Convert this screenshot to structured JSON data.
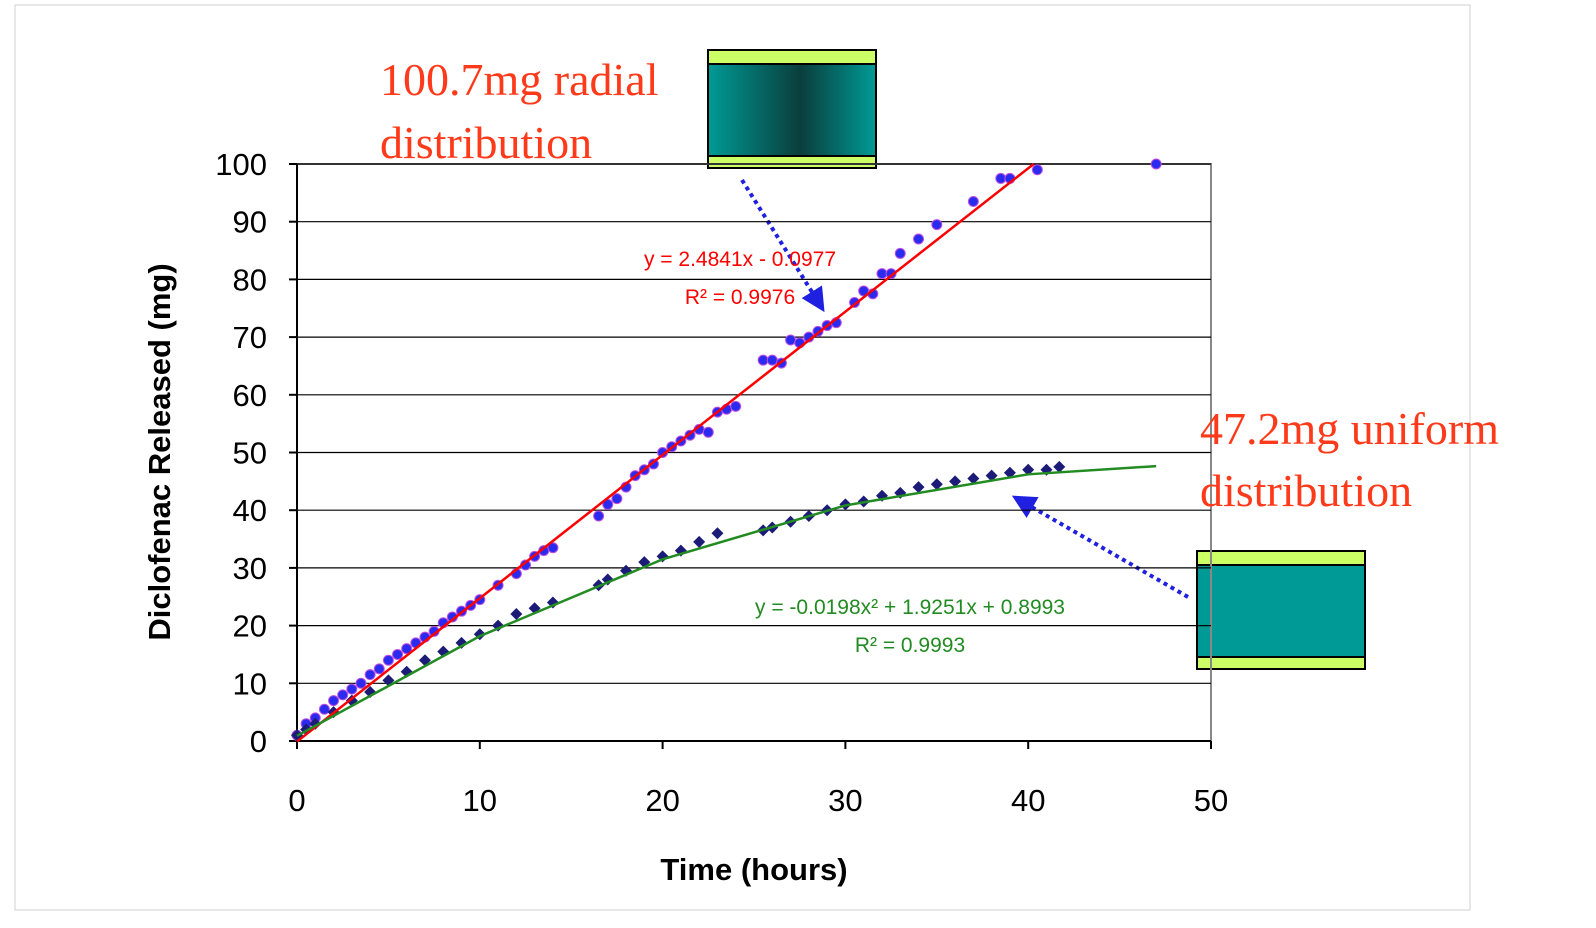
{
  "chart_data": {
    "type": "scatter",
    "xlabel": "Time (hours)",
    "ylabel": "Diclofenac Released (mg)",
    "xlim": [
      0,
      50
    ],
    "ylim": [
      0,
      100
    ],
    "xticks": [
      0,
      10,
      20,
      30,
      40,
      50
    ],
    "yticks": [
      0,
      10,
      20,
      30,
      40,
      50,
      60,
      70,
      80,
      90,
      100
    ],
    "grid": true,
    "series": [
      {
        "marker": "circle",
        "color": "#2b2bf0",
        "x": [
          0,
          0.5,
          1,
          1.5,
          2,
          2.5,
          3,
          3.5,
          4,
          4.5,
          5,
          5.5,
          6,
          6.5,
          7,
          7.5,
          8,
          8.5,
          9,
          9.5,
          10,
          11,
          12,
          12.5,
          13,
          13.5,
          14,
          16.5,
          17,
          17.5,
          18,
          18.5,
          19,
          19.5,
          20,
          20.5,
          21,
          21.5,
          22,
          22.5,
          23,
          23.5,
          24,
          25.5,
          26,
          26.5,
          27,
          27.5,
          28,
          28.5,
          29,
          29.5,
          30.5,
          31,
          31.5,
          32,
          32.5,
          33,
          34,
          35,
          37,
          38.5,
          39,
          40.5,
          47
        ],
        "values": [
          1,
          3,
          4,
          5.5,
          7,
          8,
          9,
          10,
          11.5,
          12.5,
          14,
          15,
          16,
          17,
          18,
          19,
          20.5,
          21.5,
          22.5,
          23.5,
          24.5,
          27,
          29,
          30.5,
          32,
          33,
          33.5,
          39,
          41,
          42,
          44,
          46,
          47,
          48,
          50,
          51,
          52,
          53,
          54,
          53.5,
          57,
          57.5,
          58,
          66,
          66,
          65.5,
          69.5,
          69,
          70,
          71,
          72,
          72.5,
          76,
          78,
          77.5,
          81,
          81,
          84.5,
          87,
          89.5,
          93.5,
          97.5,
          97.5,
          99,
          100
        ]
      },
      {
        "marker": "diamond",
        "color": "#1c1c78",
        "x": [
          0,
          0.5,
          1,
          2,
          3,
          4,
          5,
          6,
          7,
          8,
          9,
          10,
          11,
          12,
          13,
          14,
          16.5,
          17,
          18,
          19,
          20,
          21,
          22,
          23,
          25.5,
          26,
          27,
          28,
          29,
          30,
          31,
          32,
          33,
          34,
          35,
          36,
          37,
          38,
          39,
          40,
          41,
          41.7
        ],
        "values": [
          1,
          2,
          3,
          5,
          7,
          8.5,
          10.5,
          12,
          14,
          15.5,
          17,
          18.5,
          20,
          22,
          23,
          24,
          27,
          28,
          29.5,
          31,
          32,
          33,
          34.5,
          36,
          36.5,
          37,
          38,
          39,
          40,
          41,
          41.5,
          42.5,
          43,
          44,
          44.5,
          45,
          45.5,
          46,
          46.5,
          47,
          47,
          47.5
        ]
      }
    ],
    "trendlines": [
      {
        "color": "#ff0000",
        "x": [
          0,
          40.3
        ],
        "values": [
          -0.1,
          100
        ]
      },
      {
        "color": "#228b22",
        "x": [
          0,
          10,
          20,
          30,
          40,
          47
        ],
        "values": [
          0.9,
          18.17,
          31.48,
          40.83,
          46.22,
          47.64
        ]
      }
    ],
    "equations": [
      {
        "color": "#ff0000",
        "lines": [
          "y = 2.4841x - 0.0977",
          "R² = 0.9976"
        ]
      },
      {
        "color": "#228b22",
        "lines": [
          "y = -0.0198x² + 1.9251x + 0.8993",
          "R² = 0.9993"
        ]
      }
    ],
    "notes": [
      {
        "color": "#ff3a1a",
        "lines": [
          "100.7mg radial",
          "distribution"
        ]
      },
      {
        "color": "#ff3a1a",
        "lines": [
          "47.2mg uniform",
          "distribution"
        ]
      }
    ]
  }
}
